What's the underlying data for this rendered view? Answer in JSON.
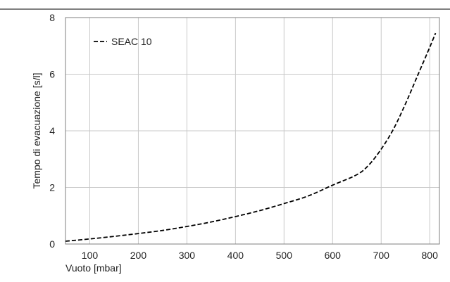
{
  "chart_data": {
    "type": "line",
    "xlabel": "Vuoto [mbar]",
    "ylabel": "Tempo di evacuazione [s/l]",
    "xlim": [
      50,
      820
    ],
    "ylim": [
      0,
      8
    ],
    "x_ticks": [
      100,
      200,
      300,
      400,
      500,
      600,
      700,
      800
    ],
    "y_ticks": [
      0,
      2,
      4,
      6,
      8
    ],
    "grid": true,
    "legend_position": "top-left",
    "series": [
      {
        "name": "SEAC 10",
        "style": "dashed",
        "color": "#000000",
        "x": [
          50,
          100,
          150,
          200,
          250,
          300,
          350,
          400,
          450,
          500,
          550,
          600,
          650,
          675,
          700,
          725,
          750,
          775,
          800,
          812
        ],
        "y": [
          0.1,
          0.18,
          0.27,
          0.37,
          0.48,
          0.62,
          0.78,
          0.97,
          1.18,
          1.43,
          1.7,
          2.08,
          2.45,
          2.8,
          3.35,
          4.05,
          4.95,
          5.95,
          6.95,
          7.45
        ]
      }
    ]
  },
  "colors": {
    "grid": "#c8c8c8",
    "frame": "#7f7f7f",
    "top_rule": "#000000"
  }
}
